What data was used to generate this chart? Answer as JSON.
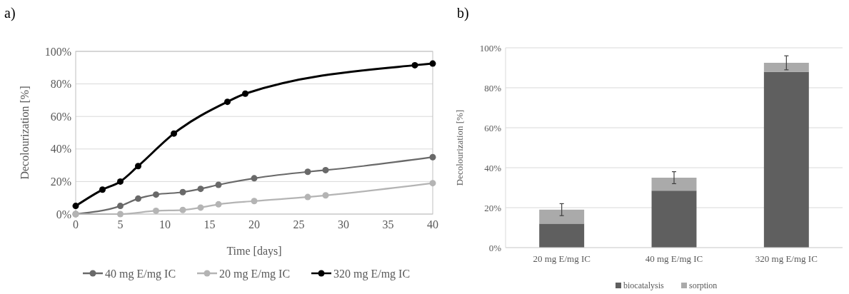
{
  "chart_data": [
    {
      "type": "line",
      "title": "a)",
      "xlabel": "Time [days]",
      "ylabel": "Decolourization [%]",
      "xlim": [
        0,
        40
      ],
      "xticks": [
        0,
        5,
        10,
        15,
        20,
        25,
        30,
        35,
        40
      ],
      "ylim": [
        0,
        100
      ],
      "yticks": [
        {
          "value": 0,
          "label": "0%"
        },
        {
          "value": 20,
          "label": "20%"
        },
        {
          "value": 40,
          "label": "40%"
        },
        {
          "value": 60,
          "label": "60%"
        },
        {
          "value": 80,
          "label": "80%"
        },
        {
          "value": 100,
          "label": "100%"
        }
      ],
      "grid": "y",
      "legend": "bottom",
      "marker": "circle",
      "line_style": "solid",
      "series": [
        {
          "name": "40 mg E/mg IC",
          "color": "#696969",
          "x": [
            0,
            5,
            7,
            9,
            12,
            14,
            16,
            20,
            26,
            28,
            40
          ],
          "values": [
            0,
            5,
            9.5,
            12,
            13.5,
            15.5,
            18,
            22,
            26,
            27,
            35
          ]
        },
        {
          "name": "20 mg E/mg IC",
          "color": "#b4b4b4",
          "x": [
            0,
            5,
            9,
            12,
            14,
            16,
            20,
            26,
            28,
            40
          ],
          "values": [
            0,
            0,
            2,
            2.5,
            4,
            6,
            8,
            10.5,
            11.5,
            19
          ]
        },
        {
          "name": "320 mg E/mg IC",
          "color": "#000000",
          "x": [
            0,
            3,
            5,
            7,
            11,
            17,
            19,
            38,
            40
          ],
          "values": [
            5,
            15,
            20,
            29.5,
            49.5,
            69,
            74,
            91.5,
            92.5
          ]
        }
      ]
    },
    {
      "type": "bar",
      "title": "b)",
      "ylabel": "Decolourization [%]",
      "categories": [
        "20 mg E/mg IC",
        "40 mg E/mg IC",
        "320 mg E/mg IC"
      ],
      "stacked": true,
      "ylim": [
        0,
        100
      ],
      "yticks": [
        {
          "value": 0,
          "label": "0%"
        },
        {
          "value": 20,
          "label": "20%"
        },
        {
          "value": 40,
          "label": "40%"
        },
        {
          "value": 60,
          "label": "60%"
        },
        {
          "value": 80,
          "label": "80%"
        },
        {
          "value": 100,
          "label": "100%"
        }
      ],
      "grid": "y",
      "legend": "bottom",
      "series": [
        {
          "name": "biocatalysis",
          "color": "#5f5f5f",
          "values": [
            12,
            28.5,
            88
          ]
        },
        {
          "name": "sorption",
          "color": "#aaaaaa",
          "values": [
            7,
            6.5,
            4.5
          ],
          "errors": [
            3,
            3,
            3.5
          ]
        }
      ]
    }
  ]
}
